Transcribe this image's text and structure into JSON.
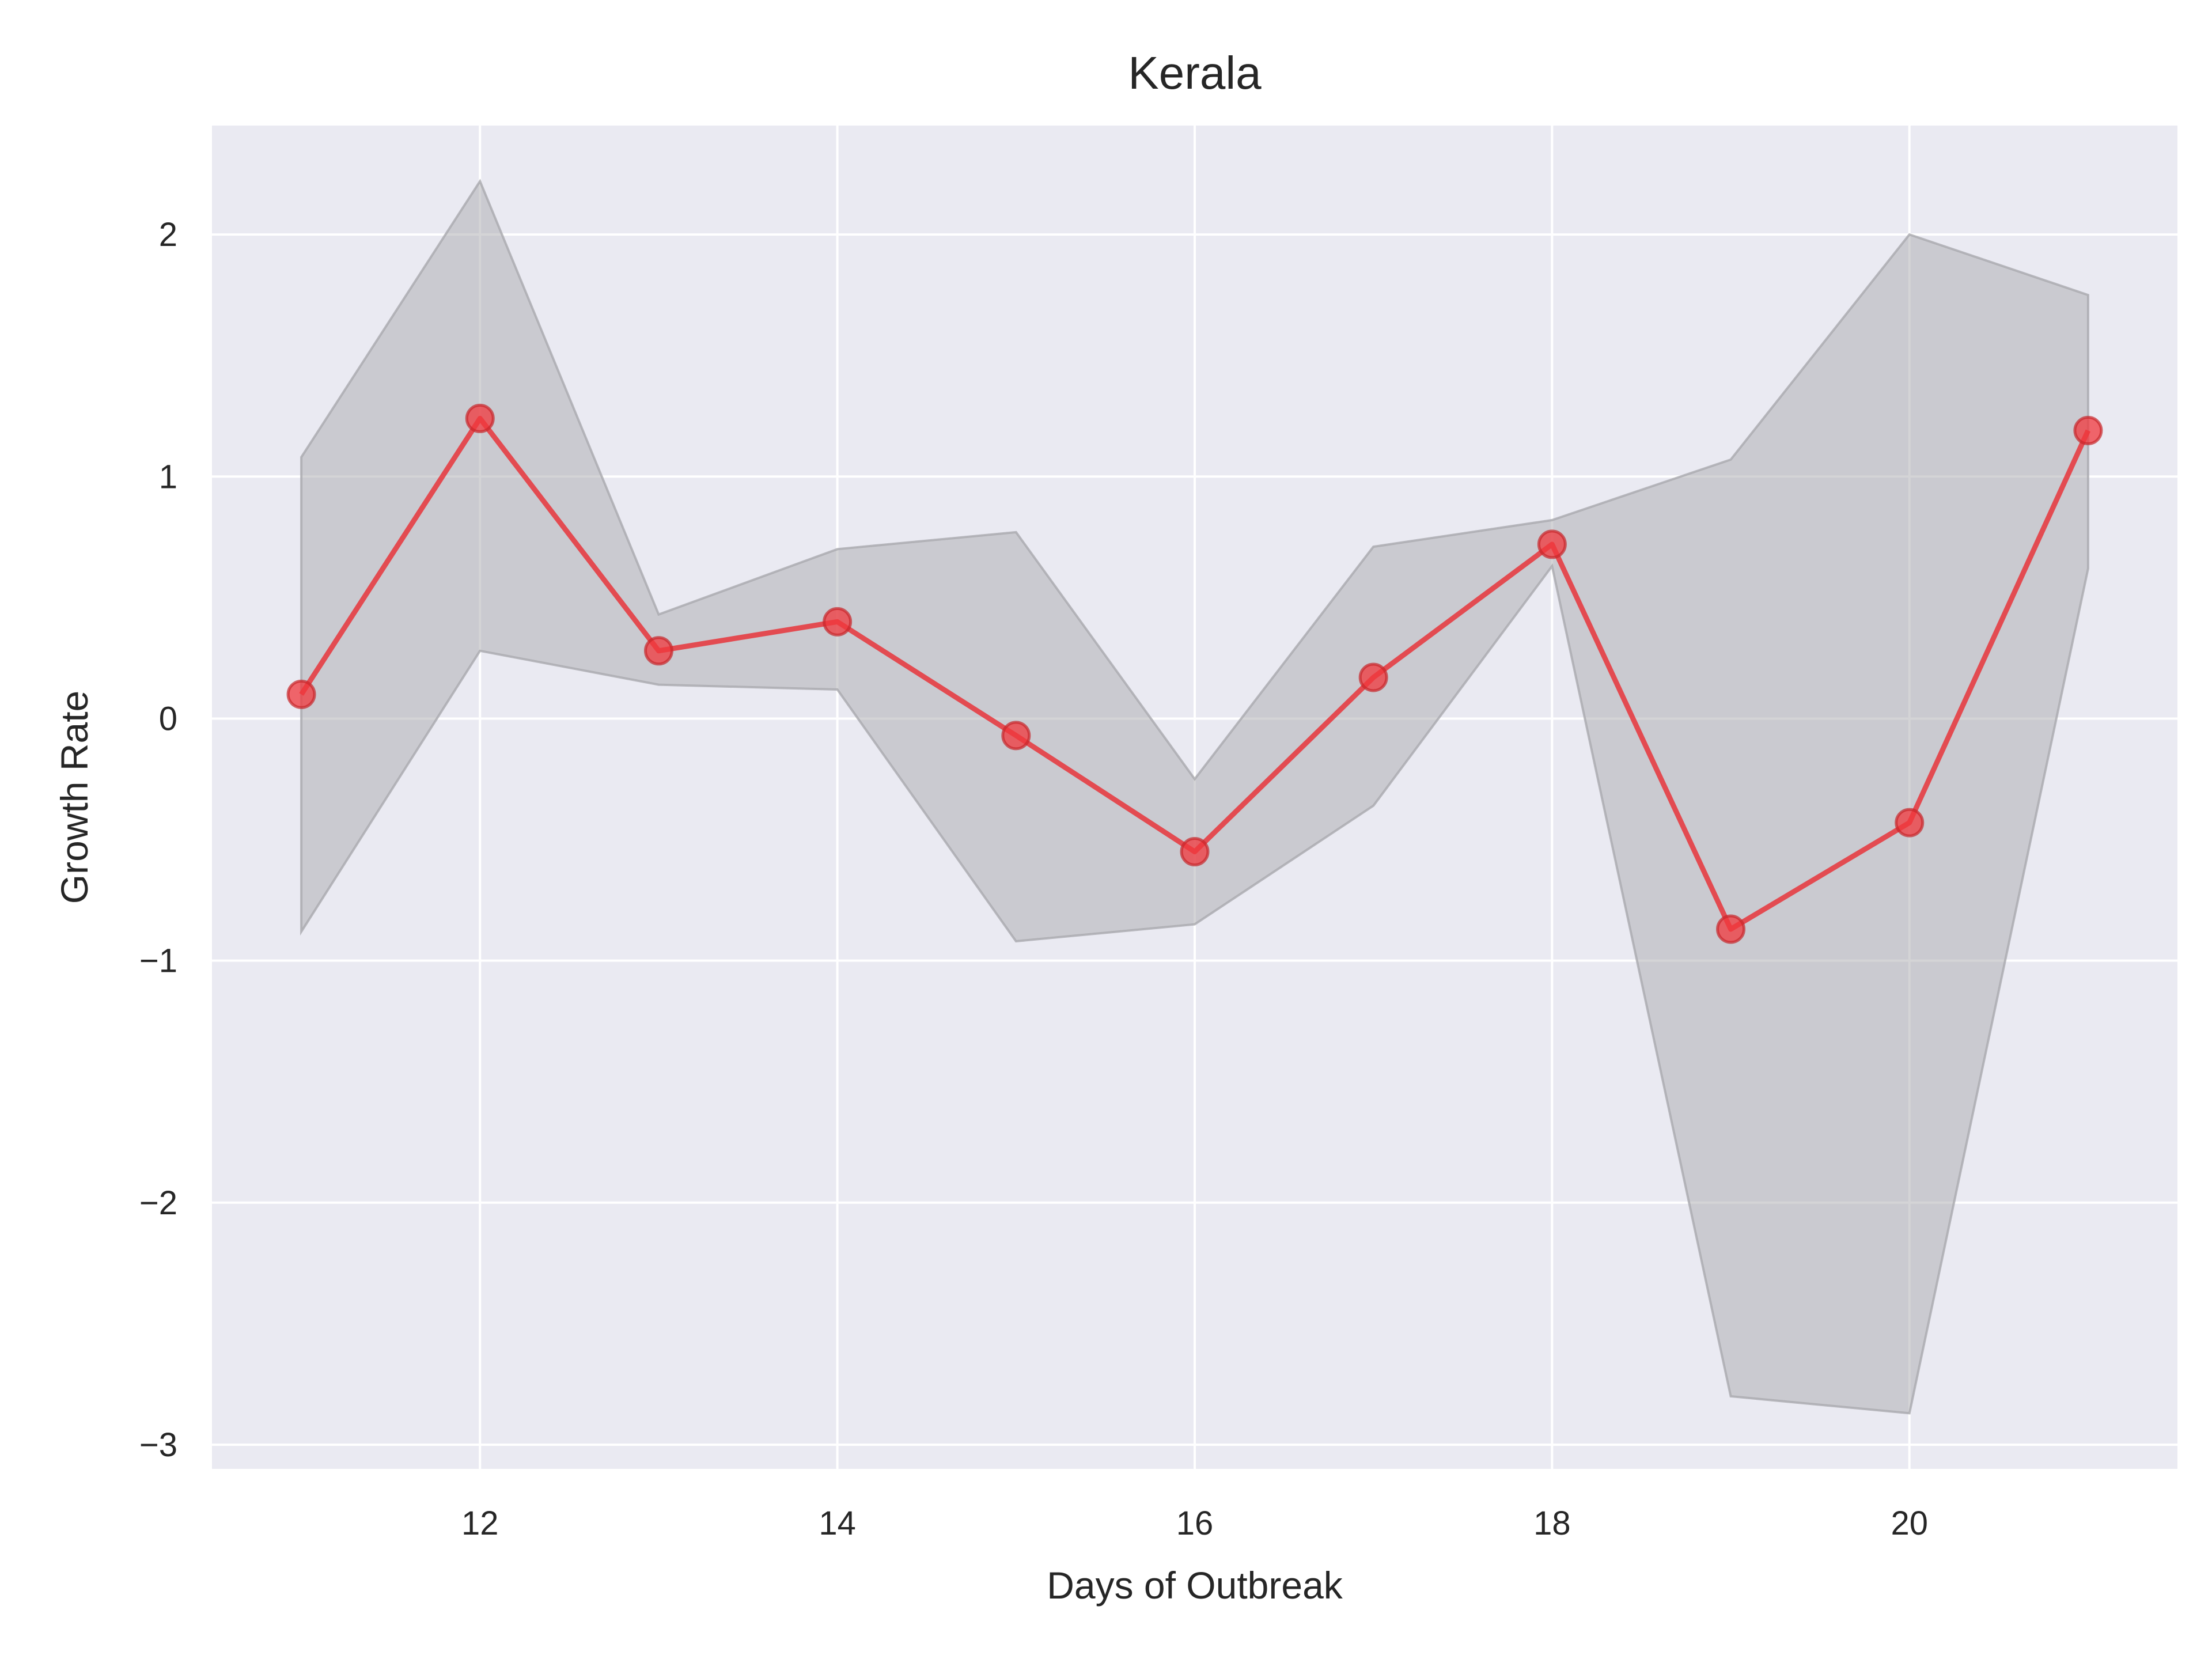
{
  "chart_data": {
    "type": "line",
    "title": "Kerala",
    "xlabel": "Days of Outbreak",
    "ylabel": "Growth Rate",
    "xlim": [
      10.5,
      21.5
    ],
    "ylim": [
      -3.1,
      2.45
    ],
    "xticks": [
      12,
      14,
      16,
      18,
      20
    ],
    "yticks": [
      -3,
      -2,
      -1,
      0,
      1,
      2
    ],
    "xtick_labels": [
      "12",
      "14",
      "16",
      "18",
      "20"
    ],
    "ytick_labels": [
      "−3",
      "−2",
      "−1",
      "0",
      "1",
      "2"
    ],
    "grid": true,
    "colors": {
      "background": "#eaeaf2",
      "grid": "#ffffff",
      "line": "#e8353b",
      "marker": "#f0373c",
      "band": "#a9a9ae"
    },
    "series": [
      {
        "x": [
          11,
          12,
          13,
          14,
          15,
          16,
          17,
          18,
          19,
          20,
          21
        ],
        "y": [
          0.1,
          1.24,
          0.28,
          0.4,
          -0.07,
          -0.55,
          0.17,
          0.72,
          -0.87,
          -0.43,
          1.19
        ],
        "upper": [
          1.08,
          2.22,
          0.43,
          0.7,
          0.77,
          -0.25,
          0.71,
          0.82,
          1.07,
          2.0,
          1.75
        ],
        "lower": [
          -0.88,
          0.28,
          0.14,
          0.12,
          -0.92,
          -0.85,
          -0.36,
          0.63,
          -2.8,
          -2.87,
          0.62
        ]
      }
    ]
  }
}
